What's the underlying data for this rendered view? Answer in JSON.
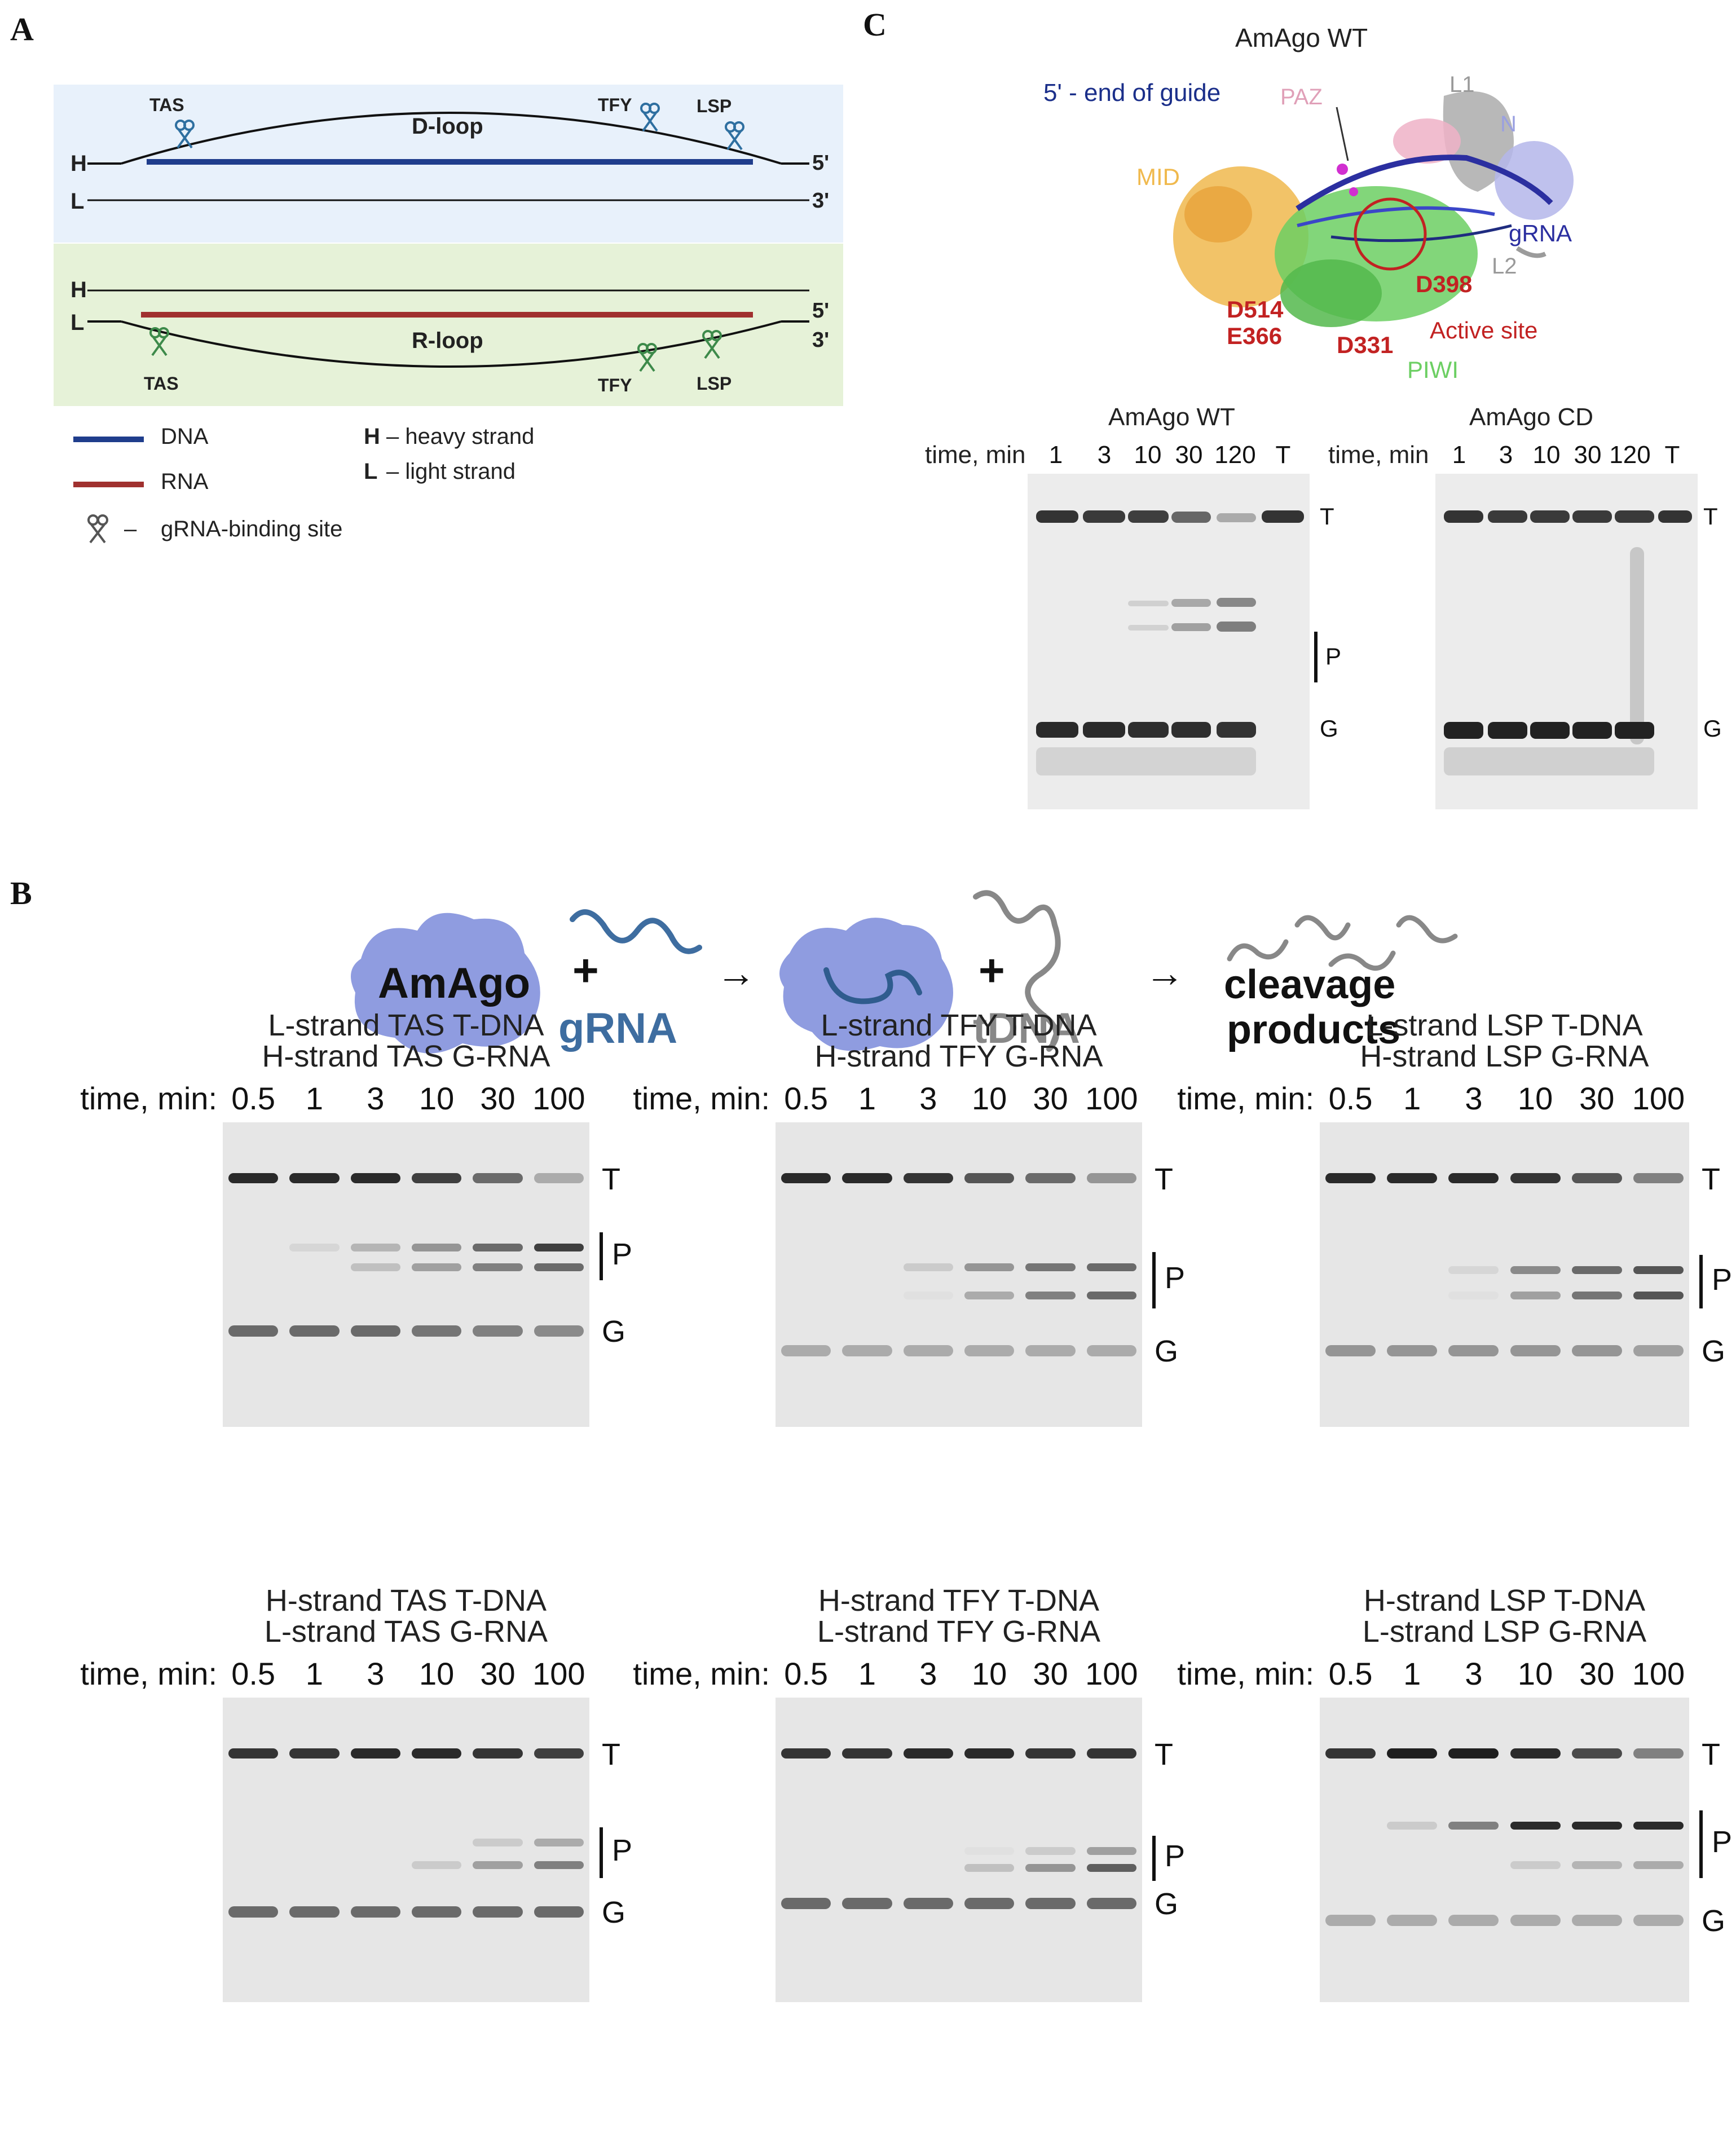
{
  "panels": {
    "a": "A",
    "b": "B",
    "c": "C"
  },
  "panel_a": {
    "dloop": {
      "title": "D-loop",
      "h": "H",
      "l": "L",
      "five": "5'",
      "three": "3'",
      "sites": [
        "TAS",
        "TFY",
        "LSP"
      ]
    },
    "rloop": {
      "title": "R-loop",
      "h": "H",
      "l": "L",
      "five": "5'",
      "three": "3'",
      "sites": [
        "TAS",
        "TFY",
        "LSP"
      ]
    },
    "legend": {
      "dna": "DNA",
      "rna": "RNA",
      "site": "gRNA-binding site",
      "site_dash": "–",
      "h_key": "H",
      "h_text": "– heavy strand",
      "l_key": "L",
      "l_text": "– light strand"
    },
    "colors": {
      "dna": "#1f3d8c",
      "rna": "#a0312f",
      "dloop_bg": "#e8f1fb",
      "rloop_bg": "#e6f2d8"
    }
  },
  "panel_c": {
    "structure_title": "AmAgo WT",
    "labels": {
      "guide_end": "5' - end of guide",
      "paz": "PAZ",
      "l1": "L1",
      "n": "N",
      "mid": "MID",
      "grna": "gRNA",
      "l2": "L2",
      "d398": "D398",
      "d514": "D514",
      "e366": "E366",
      "d331": "D331",
      "active_site": "Active site",
      "piwi": "PIWI"
    },
    "gels": [
      {
        "title": "AmAgo WT",
        "time_label": "time, min",
        "lanes": [
          "1",
          "3",
          "10",
          "30",
          "120",
          "T"
        ],
        "markers": [
          "T",
          "P",
          "G"
        ]
      },
      {
        "title": "AmAgo CD",
        "time_label": "time, min",
        "lanes": [
          "1",
          "3",
          "10",
          "30",
          "120",
          "T"
        ],
        "markers": [
          "T",
          "G"
        ]
      }
    ]
  },
  "panel_b": {
    "scheme": {
      "protein": "AmAgo",
      "plus": "+",
      "grna": "gRNA",
      "arrow": "→",
      "tdna": "tDNA",
      "products_1": "cleavage",
      "products_2": "products"
    },
    "gels": [
      {
        "title_1": "L-strand TAS T-DNA",
        "title_2": "H-strand TAS G-RNA",
        "time_label": "time, min:",
        "lanes": [
          "0.5",
          "1",
          "3",
          "10",
          "30",
          "100"
        ],
        "markers": [
          "T",
          "P",
          "G"
        ]
      },
      {
        "title_1": "L-strand TFY T-DNA",
        "title_2": "H-strand TFY G-RNA",
        "time_label": "time, min:",
        "lanes": [
          "0.5",
          "1",
          "3",
          "10",
          "30",
          "100"
        ],
        "markers": [
          "T",
          "P",
          "G"
        ]
      },
      {
        "title_1": "L-strand LSP T-DNA",
        "title_2": "H-strand LSP G-RNA",
        "time_label": "time, min:",
        "lanes": [
          "0.5",
          "1",
          "3",
          "10",
          "30",
          "100"
        ],
        "markers": [
          "T",
          "P",
          "G"
        ]
      },
      {
        "title_1": "H-strand TAS T-DNA",
        "title_2": "L-strand TAS G-RNA",
        "time_label": "time, min:",
        "lanes": [
          "0.5",
          "1",
          "3",
          "10",
          "30",
          "100"
        ],
        "markers": [
          "T",
          "P",
          "G"
        ]
      },
      {
        "title_1": "H-strand TFY T-DNA",
        "title_2": "L-strand TFY G-RNA",
        "time_label": "time, min:",
        "lanes": [
          "0.5",
          "1",
          "3",
          "10",
          "30",
          "100"
        ],
        "markers": [
          "T",
          "P",
          "G"
        ]
      },
      {
        "title_1": "H-strand LSP T-DNA",
        "title_2": "L-strand LSP G-RNA",
        "time_label": "time, min:",
        "lanes": [
          "0.5",
          "1",
          "3",
          "10",
          "30",
          "100"
        ],
        "markers": [
          "T",
          "P",
          "G"
        ]
      }
    ]
  }
}
